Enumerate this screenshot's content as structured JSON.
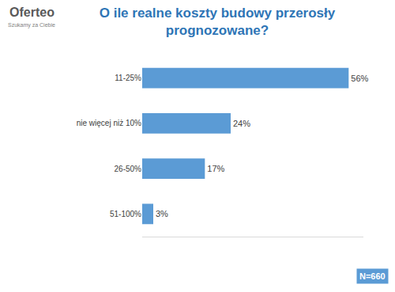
{
  "chart_data": {
    "type": "bar",
    "title": "O ile realne koszty budowy przerosły\nprognozowane?",
    "categories": [
      "11-25%",
      "nie więcej niż 10%",
      "26-50%",
      "51-100%"
    ],
    "values": [
      56,
      24,
      17,
      3
    ],
    "value_labels": [
      "56%",
      "24%",
      "17%",
      "3%"
    ],
    "color": "#5b9bd5",
    "orientation": "horizontal",
    "data_labels": true,
    "tick_labels": "y",
    "grid": false,
    "xlim": [
      0,
      60
    ],
    "annotations": [
      "Oferteo",
      "Szukamy za Ciebie",
      "N=660"
    ]
  }
}
